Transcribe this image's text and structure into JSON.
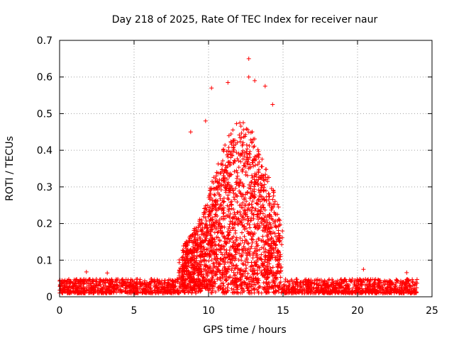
{
  "chart_data": {
    "type": "scatter",
    "title": "Day 218 of 2025, Rate Of TEC Index for receiver naur",
    "xlabel": "GPS time / hours",
    "ylabel": "ROTI / TECUs",
    "xlim": [
      0,
      25
    ],
    "ylim": [
      0,
      0.7
    ],
    "xticks": [
      0,
      5,
      10,
      15,
      20,
      25
    ],
    "yticks": [
      0,
      0.1,
      0.2,
      0.3,
      0.4,
      0.5,
      0.6,
      0.7
    ],
    "xtick_labels": [
      "0",
      "5",
      "10",
      "15",
      "20",
      "25"
    ],
    "ytick_labels": [
      "0",
      "0.1",
      "0.2",
      "0.3",
      "0.4",
      "0.5",
      "0.6",
      "0.7"
    ],
    "grid": true,
    "marker": "+",
    "color": "#ff0000",
    "background_level_range": [
      0.0,
      0.07
    ],
    "enhanced_interval_hours": [
      8.0,
      15.0
    ],
    "sample_points": [
      {
        "x": 1.8,
        "y": 0.068
      },
      {
        "x": 3.2,
        "y": 0.065
      },
      {
        "x": 8.8,
        "y": 0.45
      },
      {
        "x": 9.8,
        "y": 0.48
      },
      {
        "x": 10.2,
        "y": 0.57
      },
      {
        "x": 11.3,
        "y": 0.585
      },
      {
        "x": 12.7,
        "y": 0.65
      },
      {
        "x": 12.7,
        "y": 0.6
      },
      {
        "x": 13.1,
        "y": 0.59
      },
      {
        "x": 13.8,
        "y": 0.575
      },
      {
        "x": 14.3,
        "y": 0.525
      },
      {
        "x": 14.7,
        "y": 0.245
      },
      {
        "x": 20.4,
        "y": 0.075
      },
      {
        "x": 23.3,
        "y": 0.066
      }
    ]
  }
}
